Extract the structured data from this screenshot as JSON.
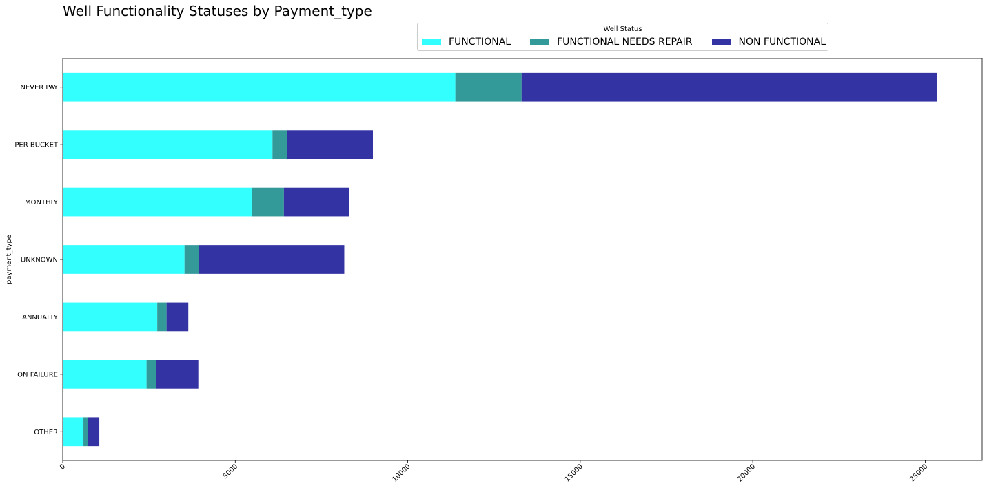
{
  "chart_data": {
    "type": "bar",
    "orientation": "horizontal",
    "stacked": true,
    "title": "Well Functionality Statuses by Payment_type",
    "xlabel": "",
    "ylabel": "payment_type",
    "categories": [
      "NEVER PAY",
      "PER BUCKET",
      "MONTHLY",
      "UNKNOWN",
      "ANNUALLY",
      "ON FAILURE",
      "OTHER"
    ],
    "series": [
      {
        "name": "FUNCTIONAL",
        "color": "#33ffff",
        "values": [
          11380,
          6080,
          5490,
          3530,
          2740,
          2430,
          600
        ]
      },
      {
        "name": "FUNCTIONAL NEEDS REPAIR",
        "color": "#339999",
        "values": [
          1920,
          420,
          920,
          420,
          270,
          270,
          120
        ]
      },
      {
        "name": "NON FUNCTIONAL",
        "color": "#3333a3",
        "values": [
          12050,
          2490,
          1890,
          4210,
          630,
          1230,
          340
        ]
      }
    ],
    "xlim": [
      0,
      26650
    ],
    "xticks": [
      0,
      5000,
      10000,
      15000,
      20000,
      25000
    ],
    "xtick_labels": [
      "0",
      "5000",
      "10000",
      "15000",
      "20000",
      "25000"
    ],
    "xtick_rotation": 45,
    "grid": false,
    "legend": {
      "title": "Well Status",
      "placement": "top-center",
      "ncol": 3
    }
  }
}
